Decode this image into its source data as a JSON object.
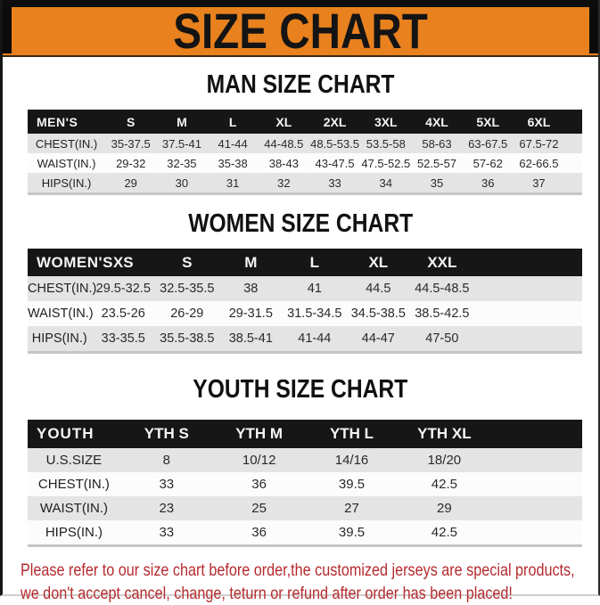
{
  "page": {
    "title": "SIZE CHART",
    "disclaimer_line1": "Please refer to our size chart before order,the customized jerseys are special products,",
    "disclaimer_line2": "we don't accept cancel, change, teturn or refund after order has been placed!"
  },
  "colors": {
    "banner_orange": "#e8811e",
    "banner_title_text": "#141414",
    "table_header_black": "#161616",
    "row_gray": "#e4e4e4",
    "row_white": "#fcfcfc",
    "disclaimer_red": "#b52a2e"
  },
  "sections": [
    {
      "heading": "MAN SIZE CHART",
      "table": {
        "header": [
          "MEN'S",
          "S",
          "M",
          "L",
          "XL",
          "2XL",
          "3XL",
          "4XL",
          "5XL",
          "6XL"
        ],
        "rows": [
          {
            "label": "CHEST(IN.)",
            "values": [
              "35-37.5",
              "37.5-41",
              "41-44",
              "44-48.5",
              "48.5-53.5",
              "53.5-58",
              "58-63",
              "63-67.5",
              "67.5-72"
            ]
          },
          {
            "label": "WAIST(IN.)",
            "values": [
              "29-32",
              "32-35",
              "35-38",
              "38-43",
              "43-47.5",
              "47.5-52.5",
              "52.5-57",
              "57-62",
              "62-66.5"
            ]
          },
          {
            "label": "HIPS(IN.)",
            "values": [
              "29",
              "30",
              "31",
              "32",
              "33",
              "34",
              "35",
              "36",
              "37"
            ]
          }
        ]
      }
    },
    {
      "heading": "WOMEN SIZE CHART",
      "table": {
        "header": [
          "WOMEN'S",
          "XS",
          "S",
          "M",
          "L",
          "XL",
          "XXL"
        ],
        "rows": [
          {
            "label": "CHEST(IN.)",
            "values": [
              "29.5-32.5",
              "32.5-35.5",
              "38",
              "41",
              "44.5",
              "44.5-48.5"
            ]
          },
          {
            "label": "WAIST(IN.)",
            "values": [
              "23.5-26",
              "26-29",
              "29-31.5",
              "31.5-34.5",
              "34.5-38.5",
              "38.5-42.5"
            ]
          },
          {
            "label": "HIPS(IN.)",
            "values": [
              "33-35.5",
              "35.5-38.5",
              "38.5-41",
              "41-44",
              "44-47",
              "47-50"
            ]
          }
        ]
      }
    },
    {
      "heading": "YOUTH SIZE CHART",
      "table": {
        "header": [
          "YOUTH",
          "YTH S",
          "YTH M",
          "YTH L",
          "YTH XL"
        ],
        "rows": [
          {
            "label": "U.S.SIZE",
            "values": [
              "8",
              "10/12",
              "14/16",
              "18/20"
            ]
          },
          {
            "label": "CHEST(IN.)",
            "values": [
              "33",
              "36",
              "39.5",
              "42.5"
            ]
          },
          {
            "label": "WAIST(IN.)",
            "values": [
              "23",
              "25",
              "27",
              "29"
            ]
          },
          {
            "label": "HIPS(IN.)",
            "values": [
              "33",
              "36",
              "39.5",
              "42.5"
            ]
          }
        ]
      }
    }
  ]
}
